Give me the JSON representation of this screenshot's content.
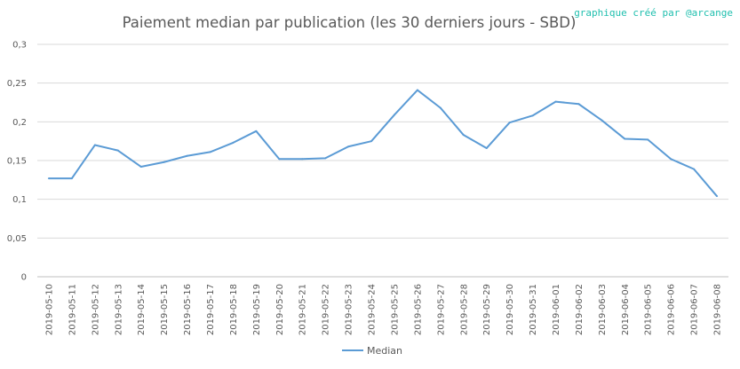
{
  "chart_data": {
    "type": "line",
    "title": "Paiement median par publication (les 30 derniers jours - SBD)",
    "credit": "graphique créé par @arcange",
    "xlabel": "",
    "ylabel": "",
    "ylim": [
      0,
      0.3
    ],
    "yticks": [
      "0",
      "0,05",
      "0,1",
      "0,15",
      "0,2",
      "0,25",
      "0,3"
    ],
    "grid": true,
    "legend_position": "bottom",
    "line_color": "#5b9bd5",
    "categories": [
      "2019-05-10",
      "2019-05-11",
      "2019-05-12",
      "2019-05-13",
      "2019-05-14",
      "2019-05-15",
      "2019-05-16",
      "2019-05-17",
      "2019-05-18",
      "2019-05-19",
      "2019-05-20",
      "2019-05-21",
      "2019-05-22",
      "2019-05-23",
      "2019-05-24",
      "2019-05-25",
      "2019-05-26",
      "2019-05-27",
      "2019-05-28",
      "2019-05-29",
      "2019-05-30",
      "2019-05-31",
      "2019-06-01",
      "2019-06-02",
      "2019-06-03",
      "2019-06-04",
      "2019-06-05",
      "2019-06-06",
      "2019-06-07",
      "2019-06-08"
    ],
    "series": [
      {
        "name": "Median",
        "values": [
          0.127,
          0.127,
          0.17,
          0.163,
          0.142,
          0.148,
          0.156,
          0.161,
          0.173,
          0.188,
          0.152,
          0.152,
          0.153,
          0.168,
          0.175,
          0.209,
          0.241,
          0.218,
          0.183,
          0.166,
          0.199,
          0.208,
          0.226,
          0.223,
          0.202,
          0.178,
          0.177,
          0.152,
          0.139,
          0.104
        ]
      }
    ]
  }
}
